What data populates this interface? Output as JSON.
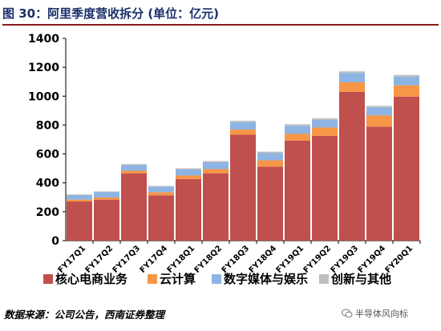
{
  "figure": {
    "title": "图 30：阿里季度营收拆分 (单位：亿元)",
    "source": "数据来源：公司公告，西南证券整理",
    "watermark": "半导体风向标"
  },
  "chart_data": {
    "type": "bar",
    "stacked": true,
    "categories": [
      "FY17Q1",
      "FY17Q2",
      "FY17Q3",
      "FY17Q4",
      "FY18Q1",
      "FY18Q2",
      "FY18Q3",
      "FY18Q4",
      "FY19Q1",
      "FY19Q2",
      "FY19Q3",
      "FY19Q4",
      "FY20Q1"
    ],
    "series": [
      {
        "name": "核心电商业务",
        "color": "#c0504d",
        "values": [
          271,
          284,
          466,
          314,
          427,
          465,
          733,
          513,
          692,
          726,
          1030,
          790,
          997
        ]
      },
      {
        "name": "云计算",
        "color": "#f79646",
        "values": [
          13,
          15,
          18,
          21,
          24,
          30,
          36,
          43,
          47,
          57,
          66,
          77,
          78
        ]
      },
      {
        "name": "数字媒体与娱乐",
        "color": "#8eb4e3",
        "values": [
          31,
          38,
          40,
          39,
          42,
          48,
          52,
          50,
          56,
          53,
          65,
          56,
          60
        ]
      },
      {
        "name": "创新与其他",
        "color": "#bfbfbf",
        "values": [
          5,
          4,
          6,
          5,
          8,
          8,
          9,
          10,
          11,
          11,
          11,
          10,
          12
        ]
      }
    ],
    "xlabel": "",
    "ylabel": "",
    "ylim": [
      0,
      1400
    ],
    "yticks": [
      0,
      200,
      400,
      600,
      800,
      1000,
      1200,
      1400
    ],
    "grid": false,
    "legend_position": "bottom"
  }
}
